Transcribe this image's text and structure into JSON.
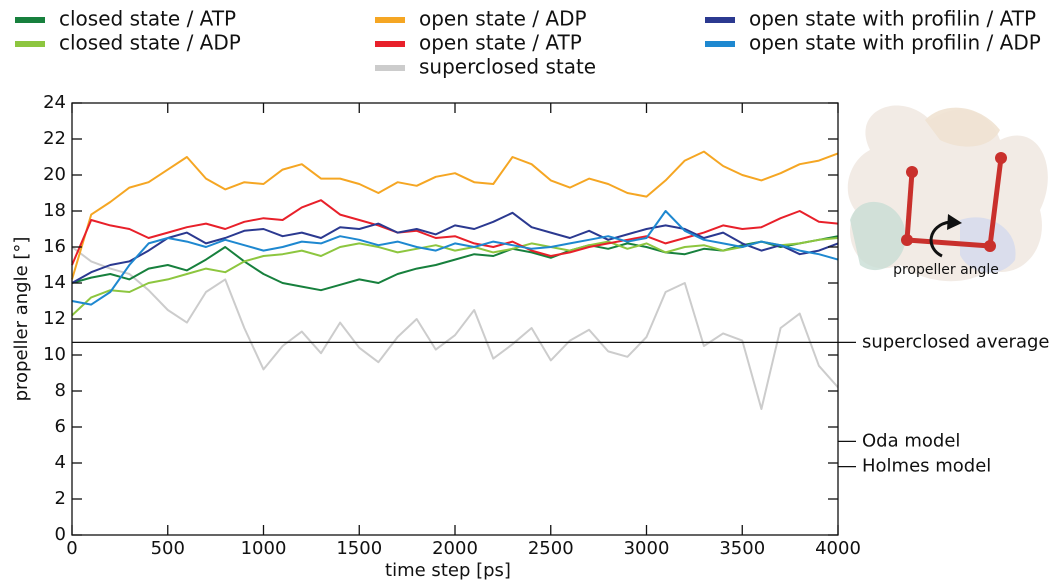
{
  "chart_data": {
    "type": "line",
    "xlabel": "time step [ps]",
    "ylabel": "propeller angle [°]",
    "xlim": [
      0,
      4000
    ],
    "ylim": [
      0,
      24
    ],
    "xticks": [
      0,
      500,
      1000,
      1500,
      2000,
      2500,
      3000,
      3500,
      4000
    ],
    "yticks": [
      0,
      2,
      4,
      6,
      8,
      10,
      12,
      14,
      16,
      18,
      20,
      22,
      24
    ],
    "x": [
      0,
      100,
      200,
      300,
      400,
      500,
      600,
      700,
      800,
      900,
      1000,
      1100,
      1200,
      1300,
      1400,
      1500,
      1600,
      1700,
      1800,
      1900,
      2000,
      2100,
      2200,
      2300,
      2400,
      2500,
      2600,
      2700,
      2800,
      2900,
      3000,
      3100,
      3200,
      3300,
      3400,
      3500,
      3600,
      3700,
      3800,
      3900,
      4000
    ],
    "series": [
      {
        "name": "closed state / ATP",
        "color": "#17803d",
        "values": [
          14.0,
          14.3,
          14.5,
          14.2,
          14.8,
          15.0,
          14.7,
          15.3,
          16.0,
          15.2,
          14.5,
          14.0,
          13.8,
          13.6,
          13.9,
          14.2,
          14.0,
          14.5,
          14.8,
          15.0,
          15.3,
          15.6,
          15.5,
          15.9,
          15.7,
          15.4,
          15.8,
          16.1,
          15.9,
          16.2,
          16.0,
          15.7,
          15.6,
          15.9,
          15.8,
          16.1,
          16.3,
          16.0,
          16.2,
          16.4,
          16.6
        ]
      },
      {
        "name": "closed state / ADP",
        "color": "#8dc63f",
        "values": [
          12.2,
          13.2,
          13.6,
          13.5,
          14.0,
          14.2,
          14.5,
          14.8,
          14.6,
          15.2,
          15.5,
          15.6,
          15.8,
          15.5,
          16.0,
          16.2,
          16.0,
          15.7,
          15.9,
          16.1,
          15.8,
          16.0,
          15.7,
          15.9,
          16.2,
          16.0,
          15.8,
          16.1,
          16.3,
          15.9,
          16.2,
          15.7,
          16.0,
          16.1,
          15.8,
          16.0,
          16.3,
          16.1,
          16.2,
          16.4,
          16.5
        ]
      },
      {
        "name": "open state / ADP",
        "color": "#f5a623",
        "values": [
          14.2,
          17.8,
          18.5,
          19.3,
          19.6,
          20.3,
          21.0,
          19.8,
          19.2,
          19.6,
          19.5,
          20.3,
          20.6,
          19.8,
          19.8,
          19.5,
          19.0,
          19.6,
          19.4,
          19.9,
          20.1,
          19.6,
          19.5,
          21.0,
          20.6,
          19.7,
          19.3,
          19.8,
          19.5,
          19.0,
          18.8,
          19.7,
          20.8,
          21.3,
          20.5,
          20.0,
          19.7,
          20.1,
          20.6,
          20.8,
          21.2
        ]
      },
      {
        "name": "open state / ATP",
        "color": "#e8202a",
        "values": [
          15.0,
          17.5,
          17.2,
          17.0,
          16.5,
          16.8,
          17.1,
          17.3,
          17.0,
          17.4,
          17.6,
          17.5,
          18.2,
          18.6,
          17.8,
          17.5,
          17.2,
          16.8,
          16.9,
          16.5,
          16.6,
          16.2,
          16.0,
          16.3,
          15.8,
          15.5,
          15.7,
          16.0,
          16.2,
          16.4,
          16.6,
          16.2,
          16.5,
          16.8,
          17.2,
          17.0,
          17.1,
          17.6,
          18.0,
          17.4,
          17.3
        ]
      },
      {
        "name": "superclosed state",
        "color": "#cccccc",
        "values": [
          16.0,
          15.2,
          14.8,
          14.5,
          13.6,
          12.5,
          11.8,
          13.5,
          14.2,
          11.5,
          9.2,
          10.5,
          11.3,
          10.1,
          11.8,
          10.4,
          9.6,
          11.0,
          12.0,
          10.3,
          11.1,
          12.5,
          9.8,
          10.6,
          11.5,
          9.7,
          10.8,
          11.4,
          10.2,
          9.9,
          11.0,
          13.5,
          14.0,
          10.5,
          11.2,
          10.8,
          7.0,
          11.5,
          12.3,
          9.4,
          8.2
        ]
      },
      {
        "name": "open state with profilin / ATP",
        "color": "#2b3990",
        "values": [
          14.0,
          14.6,
          15.0,
          15.2,
          15.8,
          16.5,
          16.8,
          16.2,
          16.5,
          16.9,
          17.0,
          16.6,
          16.8,
          16.5,
          17.1,
          17.0,
          17.3,
          16.8,
          17.0,
          16.7,
          17.2,
          17.0,
          17.4,
          17.9,
          17.1,
          16.8,
          16.5,
          16.9,
          16.4,
          16.7,
          17.0,
          17.2,
          17.0,
          16.5,
          16.8,
          16.2,
          15.8,
          16.1,
          15.6,
          15.8,
          16.2
        ]
      },
      {
        "name": "open state with profilin / ADP",
        "color": "#1e88d0",
        "values": [
          13.0,
          12.8,
          13.5,
          15.0,
          16.2,
          16.5,
          16.3,
          16.0,
          16.4,
          16.1,
          15.8,
          16.0,
          16.3,
          16.2,
          16.6,
          16.4,
          16.1,
          16.3,
          16.0,
          15.8,
          16.2,
          16.0,
          16.3,
          16.1,
          15.9,
          16.0,
          16.2,
          16.4,
          16.6,
          16.3,
          16.5,
          18.0,
          16.9,
          16.4,
          16.2,
          16.0,
          16.3,
          16.1,
          15.8,
          15.6,
          15.3
        ]
      }
    ],
    "reference_lines": [
      {
        "label": "superclosed average",
        "value": 10.7,
        "span": "full"
      },
      {
        "label": "Oda model",
        "value": 5.2,
        "span": "edge"
      },
      {
        "label": "Holmes model",
        "value": 3.8,
        "span": "edge"
      }
    ],
    "inset_label": "propeller angle"
  }
}
